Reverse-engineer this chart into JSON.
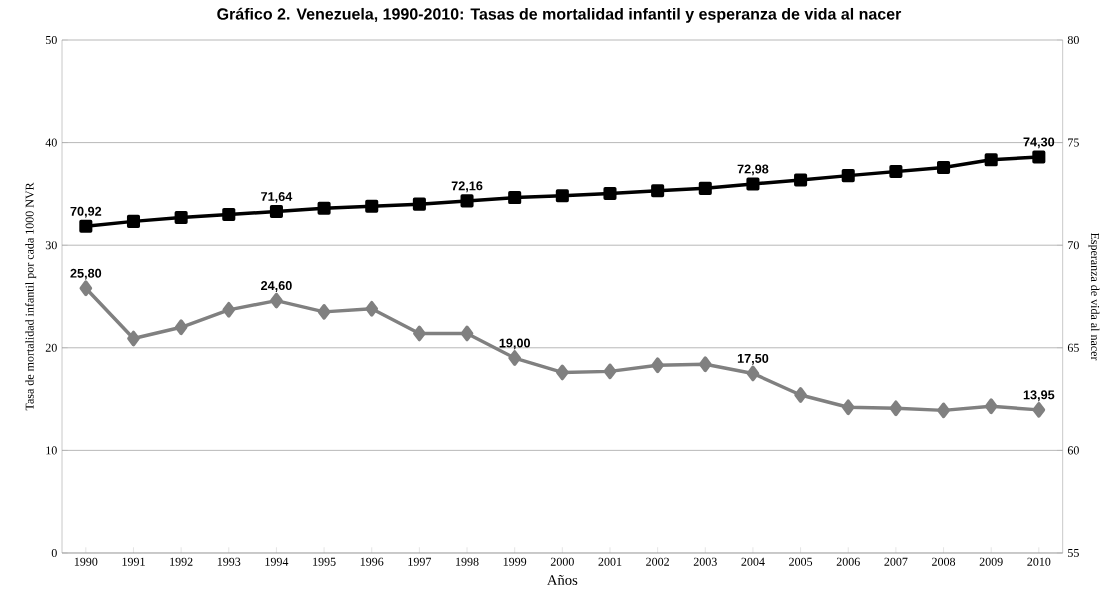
{
  "chart_data": {
    "type": "line",
    "title": "Gráfico 2. Venezuela, 1990-2010: Tasas de mortalidad infantil y esperanza de vida al nacer",
    "xlabel": "Años",
    "ylabel": "Tasa de mortalidad infantil por cada 1000 NVR",
    "y2label": "Esperanza de vida al nacer",
    "categories": [
      "1990",
      "1991",
      "1992",
      "1993",
      "1994",
      "1995",
      "1996",
      "1997",
      "1998",
      "1999",
      "2000",
      "2001",
      "2002",
      "2003",
      "2004",
      "2005",
      "2006",
      "2007",
      "2008",
      "2009",
      "2010"
    ],
    "series": [
      {
        "color": "#000000",
        "marker": "square",
        "axis": "y2",
        "values": [
          70.92,
          71.16,
          71.35,
          71.5,
          71.64,
          71.8,
          71.9,
          72.0,
          72.16,
          72.32,
          72.41,
          72.52,
          72.65,
          72.77,
          72.98,
          73.18,
          73.39,
          73.59,
          73.79,
          74.16,
          74.3
        ],
        "value_labels": [
          "70,92",
          null,
          null,
          null,
          "71,64",
          null,
          null,
          null,
          "72,16",
          null,
          null,
          null,
          null,
          null,
          "72,98",
          null,
          null,
          null,
          null,
          null,
          "74,30"
        ]
      },
      {
        "color": "#808080",
        "marker": "diamond",
        "axis": "y",
        "values": [
          25.8,
          20.9,
          22.0,
          23.7,
          24.6,
          23.5,
          23.8,
          21.4,
          21.4,
          19.0,
          17.6,
          17.7,
          18.3,
          18.4,
          17.5,
          15.4,
          14.2,
          14.1,
          13.9,
          14.3,
          13.95
        ],
        "value_labels": [
          "25,80",
          null,
          null,
          null,
          "24,60",
          null,
          null,
          null,
          null,
          "19,00",
          null,
          null,
          null,
          null,
          "17,50",
          null,
          null,
          null,
          null,
          null,
          "13,95"
        ]
      }
    ],
    "ylim": [
      0,
      50
    ],
    "yticks": [
      0,
      10,
      20,
      30,
      40,
      50
    ],
    "y2lim": [
      55,
      80
    ],
    "y2ticks": [
      55,
      60,
      65,
      70,
      75,
      80
    ],
    "grid": "y",
    "line_style": "solid"
  }
}
